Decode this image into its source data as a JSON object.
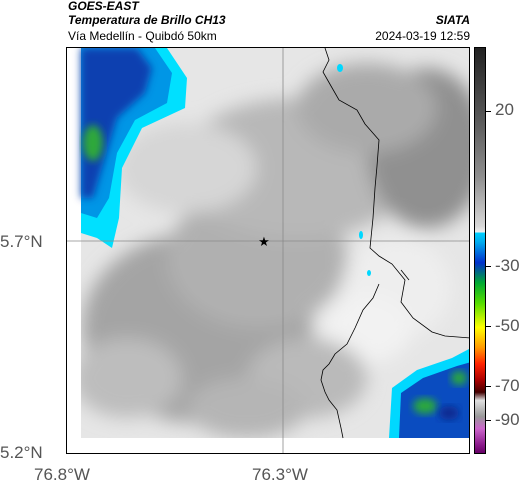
{
  "header": {
    "satellite": "GOES-EAST",
    "product": "Temperatura de Brillo CH13",
    "organization": "SIATA",
    "subtitle": "Vía Medellín - Quibdó 50km",
    "datetime": "2024-03-19 12:59"
  },
  "map": {
    "lat_ticks": [
      "5.7°N",
      "5.2°N"
    ],
    "lon_ticks": [
      "76.8°W",
      "76.3°W"
    ],
    "marker_icon": "star-icon",
    "colors": {
      "warm_land": "#eeeeee",
      "mid_gray": "#999999",
      "cold_cloud_cyan": "#00ddff",
      "cold_cloud_blue": "#0033aa",
      "cold_cloud_green": "#22aa22",
      "border_line": "#000000"
    }
  },
  "colorbar": {
    "ticks": [
      "20",
      "-30",
      "-50",
      "-70",
      "-90"
    ],
    "colors": [
      "#222222",
      "#eeeeee",
      "#00ccff",
      "#0000cc",
      "#00cc00",
      "#ffff00",
      "#ff3300",
      "#550000",
      "#aa22aa"
    ]
  }
}
